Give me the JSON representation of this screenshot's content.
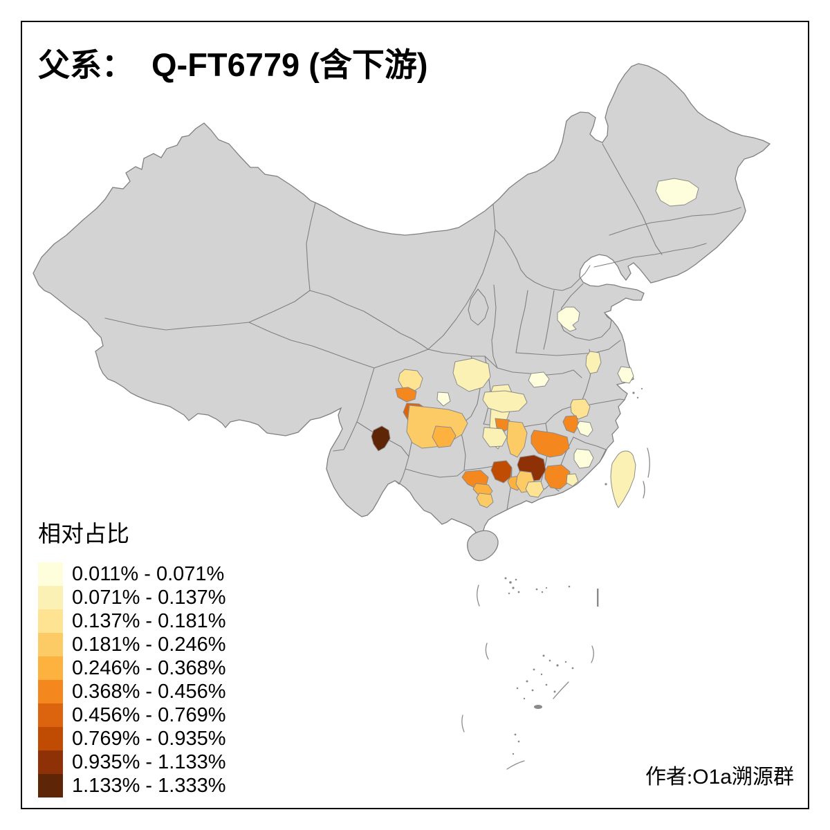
{
  "title": {
    "parts": [
      {
        "text": "父系："
      },
      {
        "text": "Q-FT6779 (含下游)"
      }
    ]
  },
  "legend": {
    "title": "相对占比",
    "classes": [
      {
        "range": "0.011% - 0.071%",
        "color": "#FFFEDC"
      },
      {
        "range": "0.071% - 0.137%",
        "color": "#FBF1B4"
      },
      {
        "range": "0.137% - 0.181%",
        "color": "#FDE392"
      },
      {
        "range": "0.181% - 0.246%",
        "color": "#FDCB66"
      },
      {
        "range": "0.246% - 0.368%",
        "color": "#FDB13F"
      },
      {
        "range": "0.368% - 0.456%",
        "color": "#F4881F"
      },
      {
        "range": "0.456% - 0.769%",
        "color": "#DC640E"
      },
      {
        "range": "0.769% - 0.935%",
        "color": "#C04B03"
      },
      {
        "range": "0.935% - 1.133%",
        "color": "#8E3106"
      },
      {
        "range": "1.133% - 1.333%",
        "color": "#5E2506"
      }
    ]
  },
  "credit": {
    "parts": [
      {
        "text": "作者:"
      },
      {
        "text": "O1a"
      },
      {
        "text": "溯源群"
      }
    ]
  },
  "map": {
    "colors": {
      "land": "#D3D3D3",
      "border": "#7F7F7F",
      "sea": "#FFFFFF",
      "frame": "#000000"
    },
    "regions": [
      {
        "id": "r1",
        "cls": 3
      },
      {
        "id": "r2",
        "cls": 6
      },
      {
        "id": "r3",
        "cls": 7
      },
      {
        "id": "r4",
        "cls": 10
      },
      {
        "id": "r5",
        "cls": 4
      },
      {
        "id": "r6",
        "cls": 5
      },
      {
        "id": "r7",
        "cls": 1
      },
      {
        "id": "r8",
        "cls": 2
      },
      {
        "id": "r9",
        "cls": 2
      },
      {
        "id": "r10",
        "cls": 6
      },
      {
        "id": "r11",
        "cls": 2
      },
      {
        "id": "r12",
        "cls": 1
      },
      {
        "id": "r13",
        "cls": 2
      },
      {
        "id": "r14",
        "cls": 4
      },
      {
        "id": "r15",
        "cls": 6
      },
      {
        "id": "r16",
        "cls": 9
      },
      {
        "id": "r17",
        "cls": 8
      },
      {
        "id": "r18",
        "cls": 6
      },
      {
        "id": "r19",
        "cls": 5
      },
      {
        "id": "r20",
        "cls": 4
      },
      {
        "id": "r21",
        "cls": 3
      },
      {
        "id": "r22",
        "cls": 6
      },
      {
        "id": "r23",
        "cls": 5
      },
      {
        "id": "r24",
        "cls": 4
      },
      {
        "id": "r25",
        "cls": 1
      },
      {
        "id": "r26",
        "cls": 2
      },
      {
        "id": "r27",
        "cls": 3
      },
      {
        "id": "r28",
        "cls": 6
      },
      {
        "id": "r29",
        "cls": 1
      },
      {
        "id": "r30",
        "cls": 2
      },
      {
        "id": "r31",
        "cls": 1
      },
      {
        "id": "r33",
        "cls": 1
      },
      {
        "id": "r34",
        "cls": 1
      },
      {
        "id": "taiwan",
        "cls": 2
      }
    ]
  }
}
